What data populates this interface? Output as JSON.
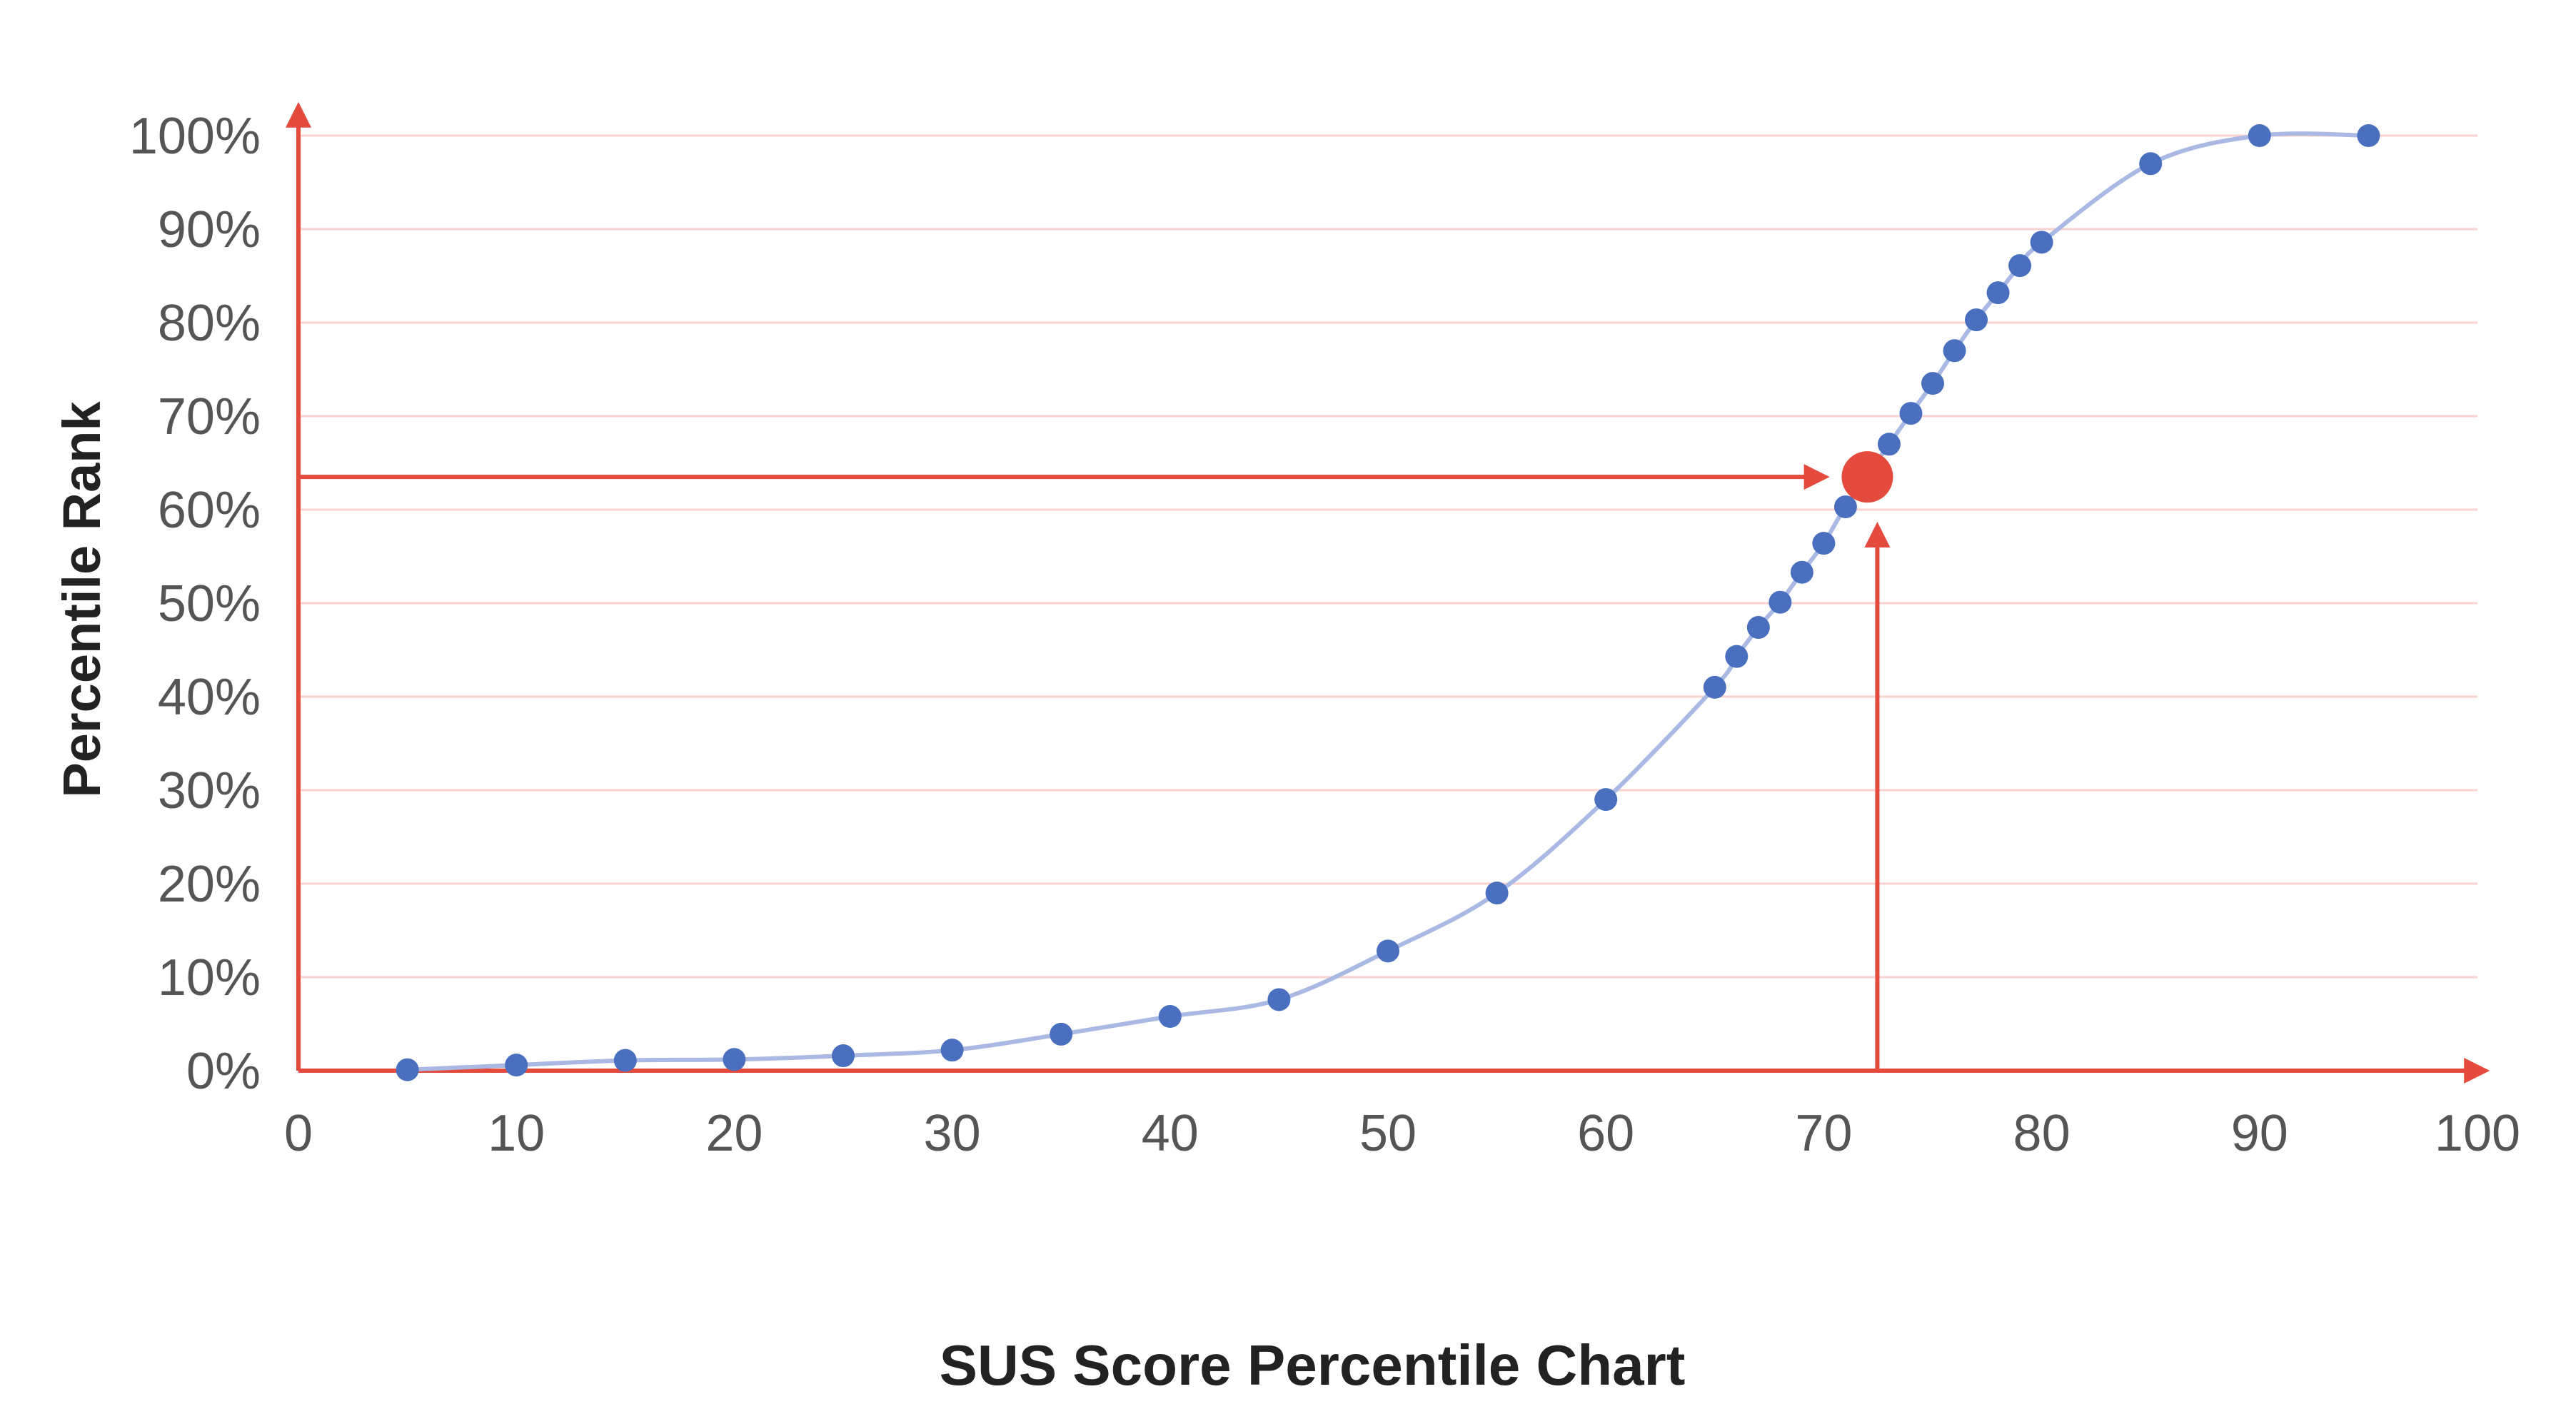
{
  "chart_data": {
    "type": "scatter",
    "title": "SUS Score Percentile Chart",
    "xlabel": "",
    "ylabel": "Percentile Rank",
    "xlim": [
      0,
      100
    ],
    "ylim": [
      0,
      100
    ],
    "x_ticks": [
      "0",
      "10",
      "20",
      "30",
      "40",
      "50",
      "60",
      "70",
      "80",
      "90",
      "100"
    ],
    "y_ticks": [
      "0%",
      "10%",
      "20%",
      "30%",
      "40%",
      "50%",
      "60%",
      "70%",
      "80%",
      "90%",
      "100%"
    ],
    "grid": "horizontal",
    "series": [
      {
        "x": [
          5,
          10,
          15,
          20,
          25,
          30,
          35,
          40,
          45,
          50,
          55,
          60,
          65,
          66,
          67,
          68,
          69,
          70,
          71,
          73,
          74,
          75,
          76,
          77,
          78,
          79,
          80,
          85,
          90,
          95
        ],
        "y": [
          0.1,
          0.6,
          1.1,
          1.2,
          1.6,
          2.2,
          3.9,
          5.8,
          7.6,
          12.8,
          19.0,
          29.0,
          41.0,
          44.3,
          47.4,
          50.1,
          53.3,
          56.4,
          60.3,
          67.0,
          70.3,
          73.5,
          77.0,
          80.3,
          83.2,
          86.1,
          88.6,
          97.0,
          100.0,
          100.0
        ]
      }
    ],
    "highlight": {
      "x": 72,
      "y": 63.5
    },
    "colors": {
      "points": "#4a6fbf",
      "curve": "#a9b9e3",
      "axes": "#e54b3c",
      "highlight": "#e54b3c",
      "grid": "#f8d3cf"
    }
  }
}
